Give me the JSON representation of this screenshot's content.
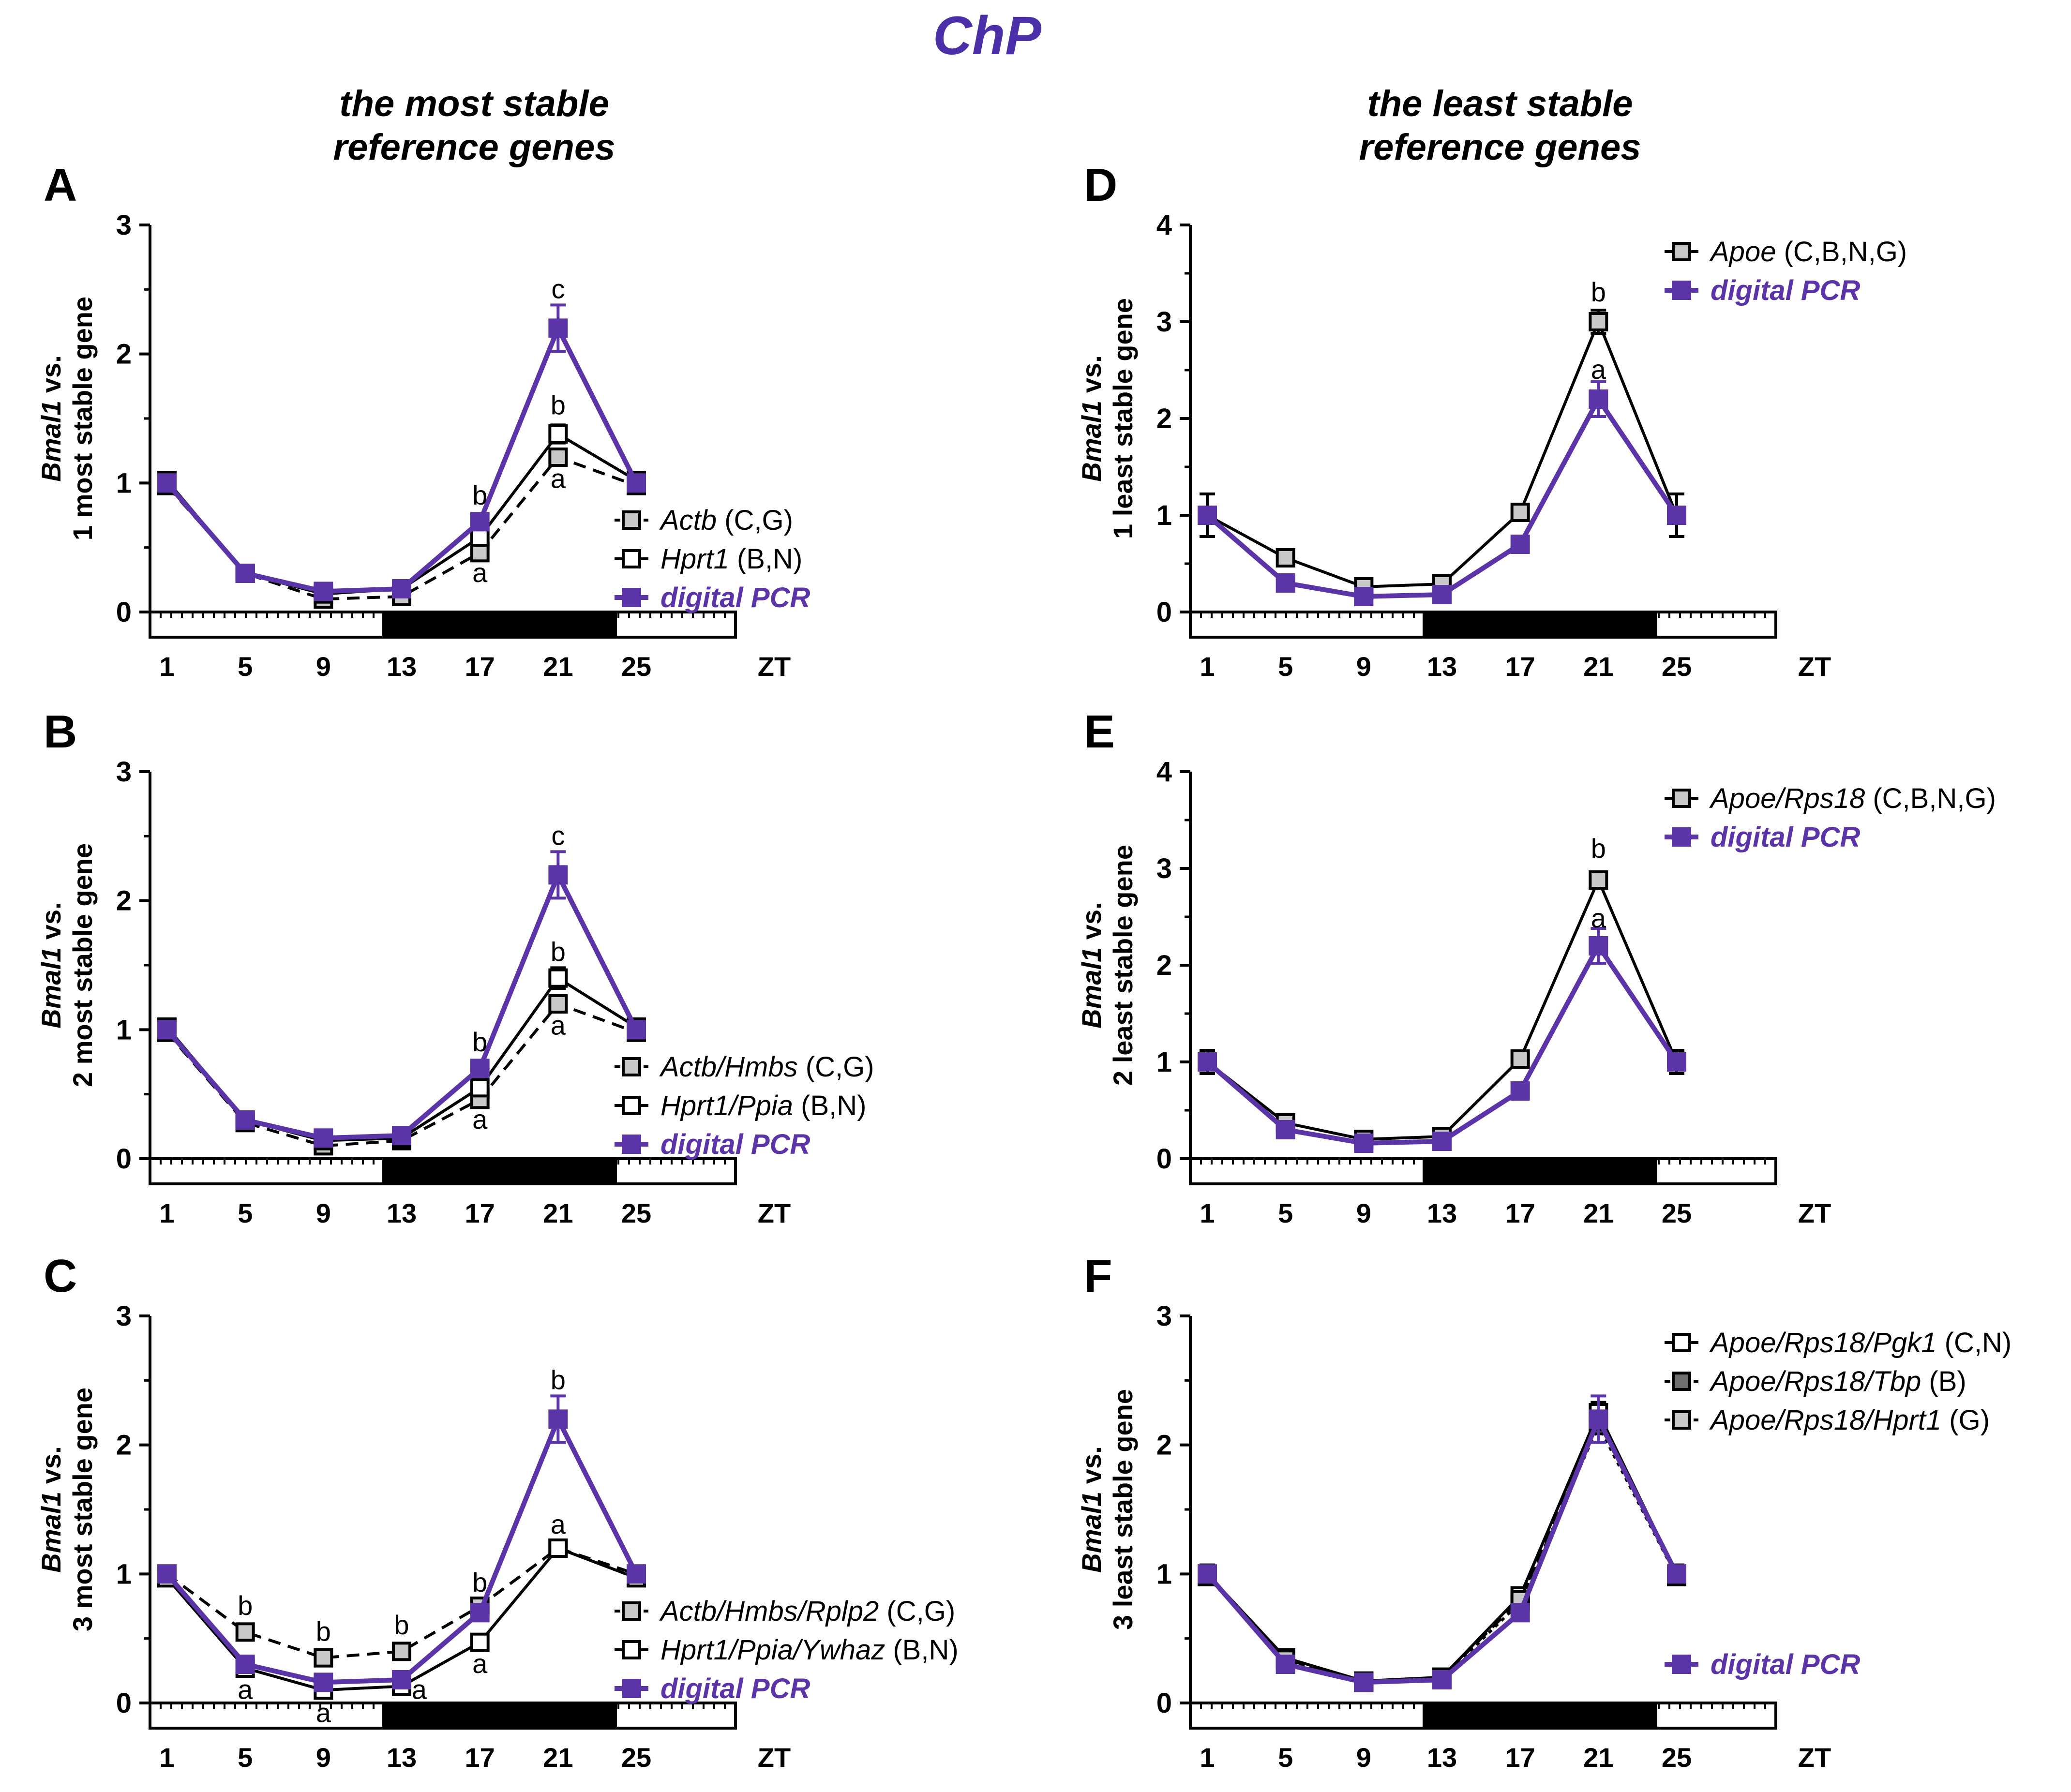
{
  "title": "ChP",
  "column_headers": [
    {
      "line1": "the most stable",
      "line2": "reference genes"
    },
    {
      "line1": "the least stable",
      "line2": "reference genes"
    }
  ],
  "colors": {
    "purple": "#5b34a8",
    "black": "#000000",
    "gray_fill": "#c8c8c8",
    "dark_fill": "#6e6e6e"
  },
  "xaxis_label": "ZT",
  "chart_data": [
    {
      "panel": "A",
      "type": "line",
      "ylabel_bold": "Bmal1",
      "ylabel_rest": " vs.",
      "ylabel2": "1 most stable gene",
      "ylim": [
        0,
        3
      ],
      "yticks": [
        0,
        1,
        2,
        3
      ],
      "x": [
        1,
        5,
        9,
        13,
        17,
        21,
        25
      ],
      "xticks": [
        "1",
        "5",
        "9",
        "13",
        "17",
        "21",
        "25"
      ],
      "dark_phase": [
        13,
        25
      ],
      "series": [
        {
          "name": "Actb",
          "suffix": " (C,G)",
          "style": "dashed",
          "fill": "gray",
          "color": "black",
          "values": [
            0.98,
            0.3,
            0.1,
            0.12,
            0.46,
            1.2,
            0.98
          ],
          "errors": [
            0,
            0,
            0,
            0,
            0,
            0,
            0
          ]
        },
        {
          "name": "Hprt1",
          "suffix": " (B,N)",
          "style": "solid",
          "fill": "white",
          "color": "black",
          "values": [
            1.02,
            0.3,
            0.14,
            0.18,
            0.58,
            1.38,
            1.02
          ],
          "errors": [
            0,
            0,
            0,
            0,
            0,
            0.07,
            0
          ]
        },
        {
          "name": "digital PCR",
          "suffix": "",
          "style": "solid",
          "fill": "purple",
          "color": "purple",
          "values": [
            1.0,
            0.3,
            0.16,
            0.18,
            0.7,
            2.2,
            1.0
          ],
          "errors": [
            0,
            0,
            0,
            0,
            0,
            0.18,
            0
          ]
        }
      ],
      "annotations": [
        {
          "text": "c",
          "x": 21,
          "y": 2.5
        },
        {
          "text": "b",
          "x": 21,
          "y": 1.6
        },
        {
          "text": "a",
          "x": 21,
          "y": 1.03
        },
        {
          "text": "b",
          "x": 17,
          "y": 0.9
        },
        {
          "text": "a",
          "x": 17,
          "y": 0.3
        }
      ],
      "legend": "right"
    },
    {
      "panel": "B",
      "type": "line",
      "ylabel_bold": "Bmal1",
      "ylabel_rest": " vs.",
      "ylabel2": "2 most stable gene",
      "ylim": [
        0,
        3
      ],
      "yticks": [
        0,
        1,
        2,
        3
      ],
      "x": [
        1,
        5,
        9,
        13,
        17,
        21,
        25
      ],
      "xticks": [
        "1",
        "5",
        "9",
        "13",
        "17",
        "21",
        "25"
      ],
      "dark_phase": [
        13,
        25
      ],
      "series": [
        {
          "name": "Actb/Hmbs",
          "suffix": " (C,G)",
          "style": "dashed",
          "fill": "gray",
          "color": "black",
          "values": [
            0.98,
            0.28,
            0.1,
            0.14,
            0.46,
            1.2,
            0.98
          ],
          "errors": [
            0,
            0,
            0,
            0,
            0,
            0,
            0
          ]
        },
        {
          "name": "Hprt1/Ppia",
          "suffix": " (B,N)",
          "style": "solid",
          "fill": "white",
          "color": "black",
          "values": [
            1.02,
            0.3,
            0.14,
            0.16,
            0.55,
            1.4,
            1.02
          ],
          "errors": [
            0,
            0,
            0,
            0,
            0,
            0.08,
            0
          ]
        },
        {
          "name": "digital PCR",
          "suffix": "",
          "style": "solid",
          "fill": "purple",
          "color": "purple",
          "values": [
            1.0,
            0.3,
            0.16,
            0.18,
            0.7,
            2.2,
            1.0
          ],
          "errors": [
            0,
            0,
            0,
            0,
            0,
            0.18,
            0
          ]
        }
      ],
      "annotations": [
        {
          "text": "c",
          "x": 21,
          "y": 2.5
        },
        {
          "text": "b",
          "x": 21,
          "y": 1.6
        },
        {
          "text": "a",
          "x": 21,
          "y": 1.03
        },
        {
          "text": "b",
          "x": 17,
          "y": 0.9
        },
        {
          "text": "a",
          "x": 17,
          "y": 0.3
        }
      ],
      "legend": "right"
    },
    {
      "panel": "C",
      "type": "line",
      "ylabel_bold": "Bmal1",
      "ylabel_rest": " vs.",
      "ylabel2": "3 most stable gene",
      "ylim": [
        0,
        3
      ],
      "yticks": [
        0,
        1,
        2,
        3
      ],
      "x": [
        1,
        5,
        9,
        13,
        17,
        21,
        25
      ],
      "xticks": [
        "1",
        "5",
        "9",
        "13",
        "17",
        "21",
        "25"
      ],
      "dark_phase": [
        13,
        25
      ],
      "series": [
        {
          "name": "Actb/Hmbs/Rplp2",
          "suffix": " (C,G)",
          "style": "dashed",
          "fill": "gray",
          "color": "black",
          "values": [
            1.0,
            0.55,
            0.35,
            0.4,
            0.75,
            1.2,
            1.0
          ],
          "errors": [
            0,
            0,
            0,
            0,
            0,
            0,
            0
          ]
        },
        {
          "name": "Hprt1/Ppia/Ywhaz",
          "suffix": " (B,N)",
          "style": "solid",
          "fill": "white",
          "color": "black",
          "values": [
            0.97,
            0.27,
            0.1,
            0.13,
            0.47,
            1.2,
            0.97
          ],
          "errors": [
            0,
            0,
            0,
            0,
            0,
            0,
            0
          ]
        },
        {
          "name": "digital PCR",
          "suffix": "",
          "style": "solid",
          "fill": "purple",
          "color": "purple",
          "values": [
            1.0,
            0.3,
            0.16,
            0.18,
            0.7,
            2.2,
            1.0
          ],
          "errors": [
            0,
            0,
            0,
            0,
            0,
            0.18,
            0
          ]
        }
      ],
      "annotations": [
        {
          "text": "b",
          "x": 21,
          "y": 2.5
        },
        {
          "text": "a",
          "x": 21,
          "y": 1.38
        },
        {
          "text": "b",
          "x": 17,
          "y": 0.93
        },
        {
          "text": "a",
          "x": 17,
          "y": 0.3
        },
        {
          "text": "b",
          "x": 5,
          "y": 0.75
        },
        {
          "text": "a",
          "x": 5,
          "y": 0.1
        },
        {
          "text": "b",
          "x": 9,
          "y": 0.55
        },
        {
          "text": "a",
          "x": 9,
          "y": -0.08
        },
        {
          "text": "b",
          "x": 13,
          "y": 0.6
        },
        {
          "text": "a",
          "x": 13.9,
          "y": 0.1
        }
      ],
      "legend": "right"
    },
    {
      "panel": "D",
      "type": "line",
      "ylabel_bold": "Bmal1",
      "ylabel_rest": " vs.",
      "ylabel2": "1 least stable gene",
      "ylim": [
        0,
        4
      ],
      "yticks": [
        0,
        1,
        2,
        3,
        4
      ],
      "x": [
        1,
        5,
        9,
        13,
        17,
        21,
        25
      ],
      "xticks": [
        "1",
        "5",
        "9",
        "13",
        "17",
        "21",
        "25"
      ],
      "dark_phase": [
        13,
        25
      ],
      "series": [
        {
          "name": "Apoe",
          "suffix": " (C,B,N,G)",
          "style": "solid",
          "fill": "gray",
          "color": "black",
          "values": [
            1.0,
            0.56,
            0.26,
            0.29,
            1.03,
            3.0,
            1.0
          ],
          "errors": [
            0.22,
            0,
            0,
            0,
            0,
            0.12,
            0.22
          ]
        },
        {
          "name": "digital PCR",
          "suffix": "",
          "style": "solid",
          "fill": "purple",
          "color": "purple",
          "values": [
            1.0,
            0.3,
            0.16,
            0.18,
            0.7,
            2.2,
            1.0
          ],
          "errors": [
            0,
            0,
            0,
            0,
            0,
            0.18,
            0
          ]
        }
      ],
      "annotations": [
        {
          "text": "b",
          "x": 21,
          "y": 3.3
        },
        {
          "text": "a",
          "x": 21,
          "y": 2.5
        }
      ],
      "legend": "top"
    },
    {
      "panel": "E",
      "type": "line",
      "ylabel_bold": "Bmal1",
      "ylabel_rest": " vs.",
      "ylabel2": "2 least stable gene",
      "ylim": [
        0,
        4
      ],
      "yticks": [
        0,
        1,
        2,
        3,
        4
      ],
      "x": [
        1,
        5,
        9,
        13,
        17,
        21,
        25
      ],
      "xticks": [
        "1",
        "5",
        "9",
        "13",
        "17",
        "21",
        "25"
      ],
      "dark_phase": [
        13,
        25
      ],
      "series": [
        {
          "name": "Apoe/Rps18",
          "suffix": " (C,B,N,G)",
          "style": "solid",
          "fill": "gray",
          "color": "black",
          "values": [
            1.0,
            0.37,
            0.2,
            0.23,
            1.03,
            2.88,
            1.0
          ],
          "errors": [
            0.12,
            0,
            0,
            0,
            0,
            0.08,
            0.12
          ]
        },
        {
          "name": "digital PCR",
          "suffix": "",
          "style": "solid",
          "fill": "purple",
          "color": "purple",
          "values": [
            1.0,
            0.3,
            0.16,
            0.18,
            0.7,
            2.2,
            1.0
          ],
          "errors": [
            0,
            0,
            0,
            0,
            0,
            0.18,
            0
          ]
        }
      ],
      "annotations": [
        {
          "text": "b",
          "x": 21,
          "y": 3.2
        },
        {
          "text": "a",
          "x": 21,
          "y": 2.48
        }
      ],
      "legend": "top"
    },
    {
      "panel": "F",
      "type": "line",
      "ylabel_bold": "Bmal1",
      "ylabel_rest": " vs.",
      "ylabel2": "3 least stable gene",
      "ylim": [
        0,
        3
      ],
      "yticks": [
        0,
        1,
        2,
        3
      ],
      "x": [
        1,
        5,
        9,
        13,
        17,
        21,
        25
      ],
      "xticks": [
        "1",
        "5",
        "9",
        "13",
        "17",
        "21",
        "25"
      ],
      "dark_phase": [
        13,
        25
      ],
      "series": [
        {
          "name": "Apoe/Rps18/Pgk1",
          "suffix": " (C,N)",
          "style": "solid",
          "fill": "white",
          "color": "black",
          "values": [
            1.0,
            0.35,
            0.17,
            0.2,
            0.83,
            2.25,
            1.0
          ],
          "errors": [
            0.07,
            0,
            0,
            0,
            0,
            0.08,
            0.07
          ]
        },
        {
          "name": "Apoe/Rps18/Tbp",
          "suffix": " (B)",
          "style": "dotted",
          "fill": "dark",
          "color": "black",
          "values": [
            0.98,
            0.33,
            0.16,
            0.19,
            0.78,
            2.15,
            0.98
          ],
          "errors": [
            0,
            0,
            0,
            0,
            0,
            0,
            0
          ]
        },
        {
          "name": "Apoe/Rps18/Hprt1",
          "suffix": " (G)",
          "style": "dashed",
          "fill": "gray",
          "color": "black",
          "values": [
            0.99,
            0.34,
            0.16,
            0.2,
            0.8,
            2.18,
            0.99
          ],
          "errors": [
            0,
            0,
            0,
            0,
            0,
            0,
            0
          ]
        },
        {
          "name": "digital PCR",
          "suffix": "",
          "style": "solid",
          "fill": "purple",
          "color": "purple",
          "values": [
            1.0,
            0.3,
            0.16,
            0.18,
            0.7,
            2.2,
            1.0
          ],
          "errors": [
            0,
            0,
            0,
            0,
            0,
            0.18,
            0
          ]
        }
      ],
      "annotations": [],
      "legend": "split"
    }
  ]
}
